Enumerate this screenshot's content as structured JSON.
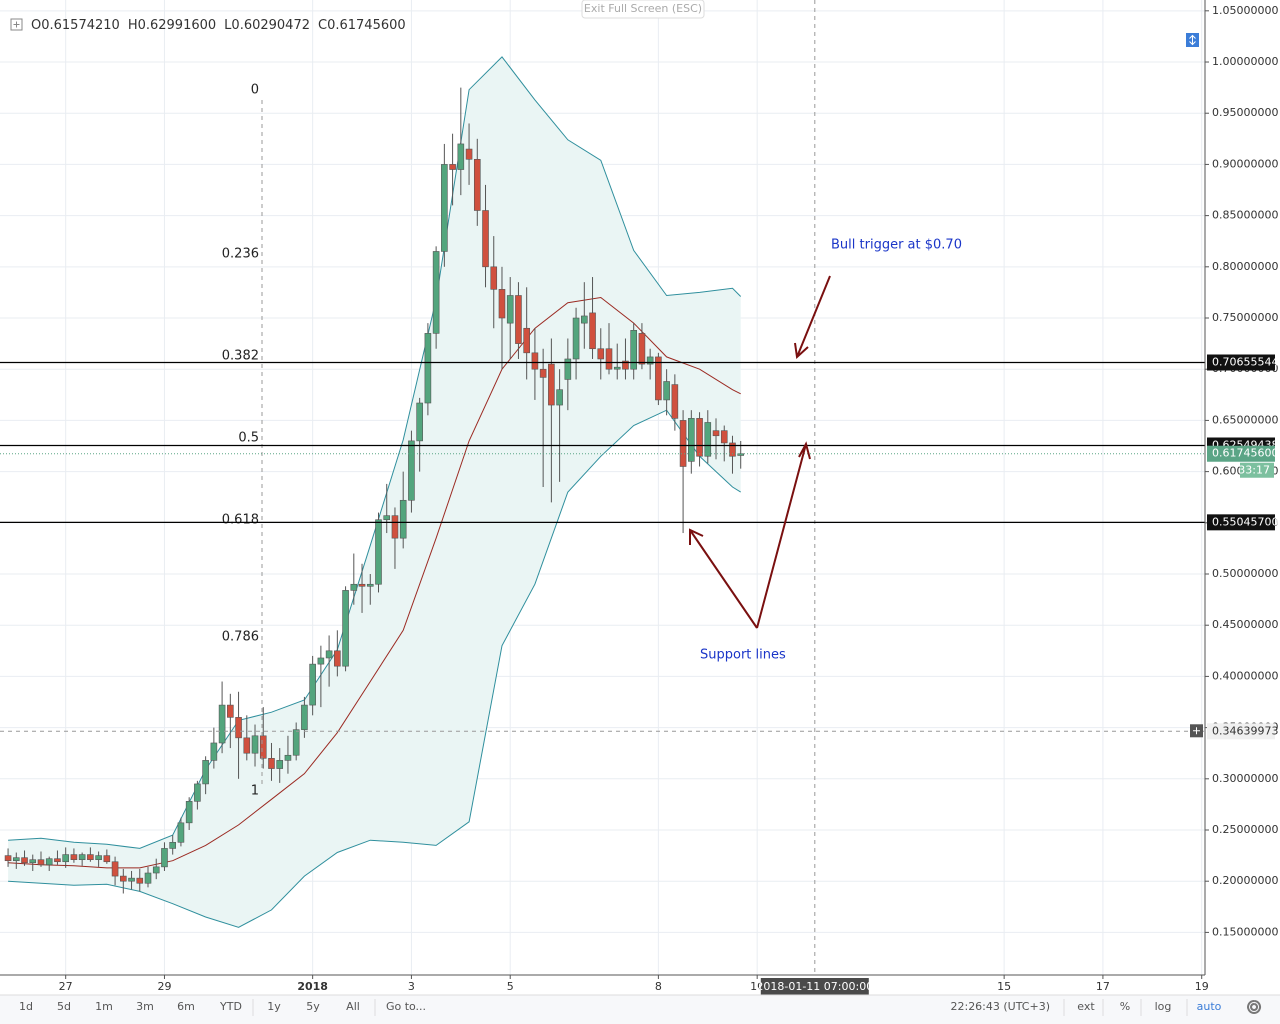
{
  "chart_data": {
    "type": "candlestick",
    "header": [
      {
        "key": "O",
        "text": "0.61574210"
      },
      {
        "key": "H",
        "text": "0.62991600"
      },
      {
        "key": "L",
        "text": "0.60290472"
      },
      {
        "key": "C",
        "text": "0.61745600"
      }
    ],
    "x": [
      0,
      1,
      2,
      3,
      4,
      5,
      6,
      7,
      8,
      9,
      10,
      11,
      12,
      13,
      14,
      15,
      16,
      17,
      18,
      19,
      20,
      21,
      22,
      23,
      24,
      25,
      26,
      27,
      28,
      29,
      30,
      31,
      32,
      33,
      34,
      35,
      36,
      37,
      38,
      39,
      40,
      41,
      42,
      43,
      44,
      45,
      46,
      47,
      48,
      49,
      50,
      51,
      52,
      53,
      54,
      55,
      56,
      57,
      58,
      59,
      60,
      61,
      62,
      63,
      64,
      65,
      66,
      67,
      68,
      69,
      70,
      71,
      72,
      73,
      74,
      75,
      76,
      77,
      78,
      79,
      80,
      81,
      82,
      83,
      84,
      85,
      86,
      87,
      88,
      89
    ],
    "open": [
      0.225,
      0.22,
      0.223,
      0.218,
      0.221,
      0.216,
      0.222,
      0.219,
      0.226,
      0.221,
      0.226,
      0.221,
      0.225,
      0.219,
      0.205,
      0.2,
      0.203,
      0.198,
      0.208,
      0.214,
      0.232,
      0.238,
      0.257,
      0.278,
      0.295,
      0.318,
      0.335,
      0.372,
      0.36,
      0.34,
      0.325,
      0.342,
      0.32,
      0.31,
      0.318,
      0.323,
      0.348,
      0.372,
      0.412,
      0.418,
      0.425,
      0.41,
      0.484,
      0.49,
      0.488,
      0.49,
      0.553,
      0.557,
      0.535,
      0.572,
      0.63,
      0.667,
      0.735,
      0.815,
      0.9,
      0.895,
      0.915,
      0.905,
      0.855,
      0.8,
      0.778,
      0.745,
      0.772,
      0.74,
      0.716,
      0.7,
      0.705,
      0.665,
      0.69,
      0.71,
      0.745,
      0.755,
      0.72,
      0.72,
      0.7,
      0.708,
      0.7,
      0.735,
      0.705,
      0.712,
      0.67,
      0.685,
      0.65,
      0.61,
      0.652,
      0.615,
      0.64,
      0.64,
      0.628,
      0.6157421
    ],
    "high": [
      0.232,
      0.228,
      0.23,
      0.226,
      0.229,
      0.224,
      0.23,
      0.233,
      0.232,
      0.228,
      0.233,
      0.229,
      0.231,
      0.224,
      0.212,
      0.21,
      0.212,
      0.214,
      0.222,
      0.238,
      0.245,
      0.262,
      0.282,
      0.298,
      0.322,
      0.35,
      0.395,
      0.383,
      0.385,
      0.362,
      0.353,
      0.37,
      0.335,
      0.33,
      0.342,
      0.355,
      0.38,
      0.42,
      0.43,
      0.44,
      0.445,
      0.488,
      0.52,
      0.51,
      0.5,
      0.56,
      0.588,
      0.565,
      0.6,
      0.64,
      0.672,
      0.745,
      0.82,
      0.92,
      0.93,
      0.975,
      0.94,
      0.925,
      0.88,
      0.83,
      0.8,
      0.79,
      0.785,
      0.78,
      0.74,
      0.72,
      0.73,
      0.7,
      0.73,
      0.76,
      0.785,
      0.79,
      0.74,
      0.745,
      0.725,
      0.73,
      0.745,
      0.745,
      0.72,
      0.716,
      0.7,
      0.695,
      0.66,
      0.66,
      0.658,
      0.66,
      0.652,
      0.645,
      0.635,
      0.629916
    ],
    "low": [
      0.214,
      0.212,
      0.215,
      0.21,
      0.214,
      0.21,
      0.216,
      0.213,
      0.218,
      0.215,
      0.219,
      0.214,
      0.217,
      0.196,
      0.188,
      0.192,
      0.19,
      0.194,
      0.202,
      0.21,
      0.226,
      0.234,
      0.25,
      0.27,
      0.285,
      0.31,
      0.325,
      0.33,
      0.3,
      0.318,
      0.312,
      0.31,
      0.298,
      0.296,
      0.305,
      0.318,
      0.34,
      0.362,
      0.37,
      0.39,
      0.4,
      0.405,
      0.47,
      0.462,
      0.47,
      0.482,
      0.54,
      0.505,
      0.525,
      0.56,
      0.6,
      0.655,
      0.72,
      0.8,
      0.86,
      0.87,
      0.88,
      0.84,
      0.78,
      0.74,
      0.7,
      0.71,
      0.71,
      0.69,
      0.67,
      0.585,
      0.57,
      0.59,
      0.66,
      0.69,
      0.72,
      0.71,
      0.69,
      0.695,
      0.69,
      0.69,
      0.69,
      0.7,
      0.69,
      0.665,
      0.655,
      0.64,
      0.54,
      0.598,
      0.605,
      0.608,
      0.612,
      0.61,
      0.598,
      0.60290472
    ],
    "close": [
      0.22,
      0.223,
      0.218,
      0.221,
      0.216,
      0.222,
      0.219,
      0.226,
      0.221,
      0.226,
      0.221,
      0.225,
      0.219,
      0.205,
      0.2,
      0.203,
      0.198,
      0.208,
      0.214,
      0.232,
      0.238,
      0.257,
      0.278,
      0.295,
      0.318,
      0.335,
      0.372,
      0.36,
      0.34,
      0.325,
      0.342,
      0.32,
      0.31,
      0.318,
      0.323,
      0.348,
      0.372,
      0.412,
      0.418,
      0.425,
      0.41,
      0.484,
      0.49,
      0.488,
      0.49,
      0.553,
      0.557,
      0.535,
      0.572,
      0.63,
      0.667,
      0.735,
      0.815,
      0.9,
      0.895,
      0.92,
      0.905,
      0.855,
      0.8,
      0.778,
      0.75,
      0.772,
      0.725,
      0.716,
      0.7,
      0.692,
      0.665,
      0.68,
      0.71,
      0.75,
      0.752,
      0.72,
      0.71,
      0.7,
      0.702,
      0.7,
      0.738,
      0.705,
      0.712,
      0.67,
      0.688,
      0.652,
      0.605,
      0.652,
      0.615,
      0.648,
      0.635,
      0.628,
      0.615,
      0.617456
    ],
    "up_color": "#53a57d",
    "down_color": "#d0503e",
    "bands": {
      "x": [
        0,
        4,
        8,
        12,
        16,
        20,
        24,
        28,
        32,
        36,
        40,
        44,
        48,
        52,
        56,
        60,
        64,
        68,
        72,
        76,
        80,
        84,
        88,
        89
      ],
      "upper": [
        0.24,
        0.242,
        0.238,
        0.236,
        0.232,
        0.245,
        0.309,
        0.357,
        0.365,
        0.377,
        0.426,
        0.528,
        0.631,
        0.768,
        0.973,
        1.005,
        0.963,
        0.924,
        0.904,
        0.816,
        0.772,
        0.775,
        0.779,
        0.771
      ],
      "middle": [
        0.218,
        0.216,
        0.215,
        0.213,
        0.213,
        0.22,
        0.235,
        0.255,
        0.28,
        0.305,
        0.345,
        0.395,
        0.445,
        0.535,
        0.63,
        0.7,
        0.74,
        0.765,
        0.77,
        0.745,
        0.712,
        0.7,
        0.68,
        0.676
      ],
      "lower": [
        0.2,
        0.198,
        0.196,
        0.197,
        0.19,
        0.178,
        0.165,
        0.155,
        0.172,
        0.205,
        0.228,
        0.24,
        0.238,
        0.235,
        0.258,
        0.43,
        0.49,
        0.58,
        0.615,
        0.645,
        0.66,
        0.615,
        0.585,
        0.58
      ],
      "color": "#2f8f9d",
      "middle_color": "#9b2a22",
      "fill": "#eaf5f4"
    },
    "xlim": [
      -0.25,
      145.4
    ],
    "xticks": [
      {
        "value": 7,
        "label": "27"
      },
      {
        "value": 19,
        "label": "29"
      },
      {
        "value": 37,
        "label": "2018"
      },
      {
        "value": 49,
        "label": "3"
      },
      {
        "value": 61,
        "label": "5"
      },
      {
        "value": 79,
        "label": "8"
      },
      {
        "value": 91,
        "label": "10"
      },
      {
        "value": 121,
        "label": "15"
      },
      {
        "value": 133,
        "label": "17"
      },
      {
        "value": 145,
        "label": "19"
      }
    ],
    "ylim": [
      0.1084,
      1.0508
    ],
    "yticks": [
      {
        "value": 0.15,
        "label": "0.15000000"
      },
      {
        "value": 0.2,
        "label": "0.20000000"
      },
      {
        "value": 0.25,
        "label": "0.25000000"
      },
      {
        "value": 0.3,
        "label": "0.30000000"
      },
      {
        "value": 0.35,
        "label": "0.35000000"
      },
      {
        "value": 0.4,
        "label": "0.40000000"
      },
      {
        "value": 0.45,
        "label": "0.45000000"
      },
      {
        "value": 0.5,
        "label": "0.50000000"
      },
      {
        "value": 0.55,
        "label": "0.55000000"
      },
      {
        "value": 0.6,
        "label": "0.60000000"
      },
      {
        "value": 0.65,
        "label": "0.65000000"
      },
      {
        "value": 0.7,
        "label": "0.70000000"
      },
      {
        "value": 0.75,
        "label": "0.75000000"
      },
      {
        "value": 0.8,
        "label": "0.80000000"
      },
      {
        "value": 0.85,
        "label": "0.85000000"
      },
      {
        "value": 0.9,
        "label": "0.90000000"
      },
      {
        "value": 0.95,
        "label": "0.95000000"
      },
      {
        "value": 1.0,
        "label": "1.00000000"
      },
      {
        "value": 1.05,
        "label": "1.05000000"
      }
    ],
    "grid": true,
    "levels": [
      {
        "value": 0.70655544,
        "label": "0.70655544"
      },
      {
        "value": 0.62549438,
        "label": "0.62549438"
      },
      {
        "value": 0.550457,
        "label": "0.55045700"
      }
    ],
    "last": {
      "value": 0.617456,
      "label": "0.61745600",
      "countdown": "33:17",
      "color": "#5ba586"
    },
    "crosshair": {
      "y": {
        "value": 0.34639973,
        "label": "0.34639973"
      },
      "x": {
        "value": 98,
        "label": "2018-01-11 07:00:00"
      }
    },
    "fib": [
      {
        "label": "0",
        "value": 0.9727
      },
      {
        "label": "0.236",
        "value": 0.8125
      },
      {
        "label": "0.382",
        "value": 0.7129
      },
      {
        "label": "0.5",
        "value": 0.6328
      },
      {
        "label": "0.618",
        "value": 0.5527
      },
      {
        "label": "0.786",
        "value": 0.4385
      },
      {
        "label": "1",
        "value": 0.2881
      }
    ],
    "annotations": [
      "Bull trigger at $0.70",
      "Support lines"
    ]
  },
  "exit_fullscreen": "Exit Full Screen (ESC)",
  "toolbar": {
    "ranges": [
      "1d",
      "5d",
      "1m",
      "3m",
      "6m",
      "YTD",
      "1y",
      "5y",
      "All"
    ],
    "goto": "Go to...",
    "clock": "22:26:43 (UTC+3)",
    "options": [
      "ext",
      "%",
      "log",
      "auto"
    ]
  }
}
